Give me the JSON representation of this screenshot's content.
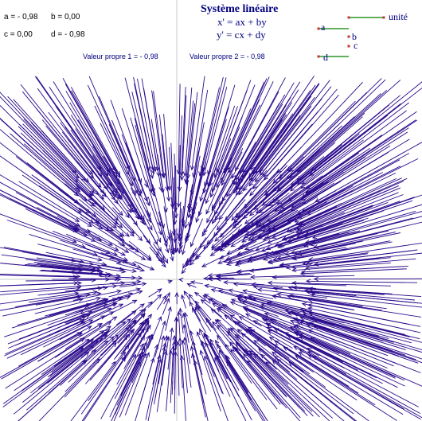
{
  "title": "Système linéaire",
  "equations": [
    "x' = ax + by",
    "y' = cx + dy"
  ],
  "params": {
    "a_text": "a = - 0,98",
    "b_text": "b = 0,00",
    "c_text": "c = 0,00",
    "d_text": "d = - 0,98"
  },
  "eigen": {
    "ev1_text": "Valeur propre 1 =  - 0,98",
    "ev2_text": "Valeur propre 2 =  - 0,98"
  },
  "controls": {
    "a_label": "a",
    "b_label": "b",
    "c_label": "c",
    "d_label": "d",
    "unit_label": "unité"
  },
  "system": {
    "a": -0.98,
    "b": 0.0,
    "c": 0.0,
    "d": -0.98
  },
  "colors": {
    "arrow": "#2b0a8c",
    "axis": "#c8c8c8",
    "slider_line": "#008000",
    "slider_handle": "#c0392b",
    "text": "#000080"
  }
}
